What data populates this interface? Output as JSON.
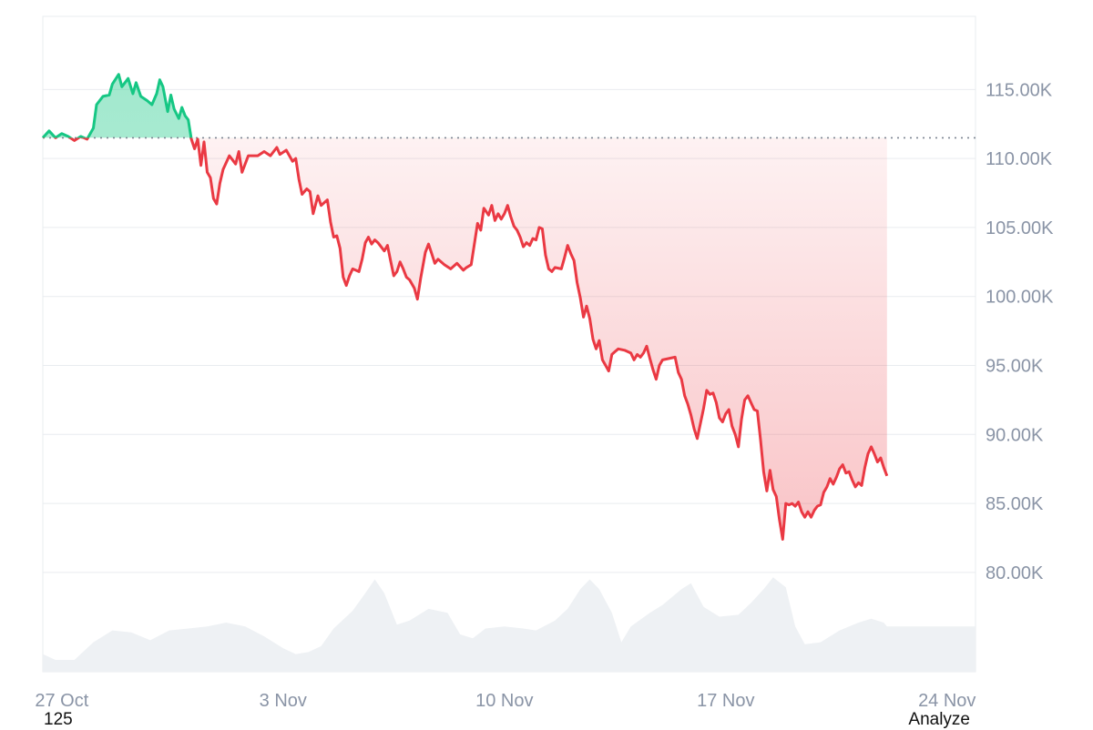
{
  "chart_data": {
    "type": "area",
    "y_axis": {
      "ticks": [
        80000,
        85000,
        90000,
        95000,
        100000,
        105000,
        110000,
        115000
      ],
      "tick_labels": [
        "80.00K",
        "85.00K",
        "90.00K",
        "95.00K",
        "100.00K",
        "105.00K",
        "110.00K",
        "115.00K"
      ],
      "position": "right",
      "range": [
        72800,
        120300
      ]
    },
    "x_axis": {
      "tick_labels": [
        "27 Oct",
        "3 Nov",
        "10 Nov",
        "17 Nov",
        "24 Nov"
      ],
      "tick_days": [
        1,
        8,
        15,
        22,
        29
      ],
      "range_days": [
        0.4,
        29.9
      ]
    },
    "baseline": 111500,
    "colors": {
      "above": "#16c784",
      "below": "#ea3943",
      "volume": "#eef1f4",
      "grid": "#e9ecef",
      "axis_text": "#8a94a6"
    },
    "grid": true,
    "price_series": [
      [
        0.4,
        111500
      ],
      [
        0.6,
        112000
      ],
      [
        0.8,
        111500
      ],
      [
        1.0,
        111800
      ],
      [
        1.2,
        111600
      ],
      [
        1.4,
        111300
      ],
      [
        1.6,
        111600
      ],
      [
        1.8,
        111400
      ],
      [
        2.0,
        112200
      ],
      [
        2.1,
        113900
      ],
      [
        2.3,
        114500
      ],
      [
        2.5,
        114600
      ],
      [
        2.6,
        115400
      ],
      [
        2.8,
        116100
      ],
      [
        2.9,
        115200
      ],
      [
        3.1,
        115800
      ],
      [
        3.25,
        114700
      ],
      [
        3.35,
        115500
      ],
      [
        3.5,
        114500
      ],
      [
        3.7,
        114200
      ],
      [
        3.85,
        113900
      ],
      [
        4.0,
        114700
      ],
      [
        4.1,
        115700
      ],
      [
        4.2,
        115200
      ],
      [
        4.35,
        113400
      ],
      [
        4.45,
        114600
      ],
      [
        4.55,
        113600
      ],
      [
        4.7,
        112900
      ],
      [
        4.8,
        113700
      ],
      [
        4.9,
        113100
      ],
      [
        5.0,
        112800
      ],
      [
        5.1,
        111400
      ],
      [
        5.2,
        110700
      ],
      [
        5.3,
        111400
      ],
      [
        5.4,
        109500
      ],
      [
        5.5,
        111200
      ],
      [
        5.6,
        109000
      ],
      [
        5.7,
        108600
      ],
      [
        5.8,
        107100
      ],
      [
        5.9,
        106700
      ],
      [
        6.0,
        108200
      ],
      [
        6.1,
        109200
      ],
      [
        6.3,
        110200
      ],
      [
        6.5,
        109600
      ],
      [
        6.6,
        110500
      ],
      [
        6.7,
        109000
      ],
      [
        6.9,
        110200
      ],
      [
        7.2,
        110200
      ],
      [
        7.4,
        110500
      ],
      [
        7.6,
        110200
      ],
      [
        7.8,
        110800
      ],
      [
        7.9,
        110300
      ],
      [
        8.1,
        110600
      ],
      [
        8.3,
        109800
      ],
      [
        8.4,
        110000
      ],
      [
        8.5,
        108500
      ],
      [
        8.6,
        107400
      ],
      [
        8.75,
        107800
      ],
      [
        8.85,
        107600
      ],
      [
        8.95,
        106000
      ],
      [
        9.1,
        107300
      ],
      [
        9.2,
        106600
      ],
      [
        9.4,
        107000
      ],
      [
        9.5,
        105400
      ],
      [
        9.6,
        104300
      ],
      [
        9.7,
        104400
      ],
      [
        9.8,
        103500
      ],
      [
        9.9,
        101400
      ],
      [
        10.0,
        100800
      ],
      [
        10.1,
        101500
      ],
      [
        10.2,
        102000
      ],
      [
        10.4,
        101800
      ],
      [
        10.5,
        102700
      ],
      [
        10.6,
        103900
      ],
      [
        10.7,
        104300
      ],
      [
        10.8,
        103800
      ],
      [
        10.9,
        104100
      ],
      [
        11.0,
        103900
      ],
      [
        11.2,
        103300
      ],
      [
        11.3,
        103700
      ],
      [
        11.4,
        102600
      ],
      [
        11.5,
        101500
      ],
      [
        11.6,
        101800
      ],
      [
        11.7,
        102500
      ],
      [
        11.8,
        102000
      ],
      [
        11.9,
        101400
      ],
      [
        12.0,
        101200
      ],
      [
        12.15,
        100600
      ],
      [
        12.25,
        99800
      ],
      [
        12.35,
        101300
      ],
      [
        12.5,
        103200
      ],
      [
        12.6,
        103800
      ],
      [
        12.7,
        103100
      ],
      [
        12.8,
        102400
      ],
      [
        12.9,
        102700
      ],
      [
        13.1,
        102300
      ],
      [
        13.3,
        102000
      ],
      [
        13.5,
        102400
      ],
      [
        13.7,
        101900
      ],
      [
        13.8,
        102100
      ],
      [
        13.95,
        102300
      ],
      [
        14.05,
        103800
      ],
      [
        14.15,
        105300
      ],
      [
        14.25,
        104800
      ],
      [
        14.35,
        106400
      ],
      [
        14.5,
        105900
      ],
      [
        14.6,
        106600
      ],
      [
        14.7,
        105500
      ],
      [
        14.8,
        106000
      ],
      [
        14.9,
        105600
      ],
      [
        15.0,
        106000
      ],
      [
        15.1,
        106600
      ],
      [
        15.2,
        105800
      ],
      [
        15.3,
        105100
      ],
      [
        15.4,
        104800
      ],
      [
        15.5,
        104300
      ],
      [
        15.6,
        103600
      ],
      [
        15.7,
        103900
      ],
      [
        15.8,
        103700
      ],
      [
        15.9,
        104200
      ],
      [
        16.0,
        104100
      ],
      [
        16.1,
        105000
      ],
      [
        16.2,
        104900
      ],
      [
        16.3,
        103000
      ],
      [
        16.4,
        102000
      ],
      [
        16.5,
        101800
      ],
      [
        16.6,
        102100
      ],
      [
        16.8,
        102000
      ],
      [
        16.9,
        102800
      ],
      [
        17.0,
        103700
      ],
      [
        17.1,
        103100
      ],
      [
        17.2,
        102600
      ],
      [
        17.3,
        101000
      ],
      [
        17.4,
        99900
      ],
      [
        17.5,
        98500
      ],
      [
        17.6,
        99300
      ],
      [
        17.7,
        98400
      ],
      [
        17.8,
        96900
      ],
      [
        17.9,
        96200
      ],
      [
        18.0,
        96800
      ],
      [
        18.1,
        95400
      ],
      [
        18.2,
        95000
      ],
      [
        18.3,
        94600
      ],
      [
        18.4,
        95800
      ],
      [
        18.5,
        96000
      ],
      [
        18.6,
        96200
      ],
      [
        18.8,
        96100
      ],
      [
        19.0,
        95900
      ],
      [
        19.1,
        95400
      ],
      [
        19.2,
        95800
      ],
      [
        19.3,
        95600
      ],
      [
        19.4,
        95900
      ],
      [
        19.5,
        96400
      ],
      [
        19.6,
        95500
      ],
      [
        19.7,
        94700
      ],
      [
        19.8,
        94000
      ],
      [
        19.9,
        95000
      ],
      [
        20.0,
        95400
      ],
      [
        20.2,
        95500
      ],
      [
        20.4,
        95600
      ],
      [
        20.5,
        94500
      ],
      [
        20.6,
        94000
      ],
      [
        20.7,
        92800
      ],
      [
        20.8,
        92200
      ],
      [
        20.9,
        91400
      ],
      [
        21.0,
        90400
      ],
      [
        21.1,
        89700
      ],
      [
        21.2,
        90800
      ],
      [
        21.3,
        91900
      ],
      [
        21.4,
        93200
      ],
      [
        21.5,
        92900
      ],
      [
        21.6,
        93000
      ],
      [
        21.7,
        92300
      ],
      [
        21.8,
        91200
      ],
      [
        21.9,
        90900
      ],
      [
        22.0,
        91500
      ],
      [
        22.1,
        91800
      ],
      [
        22.2,
        90600
      ],
      [
        22.3,
        90000
      ],
      [
        22.4,
        89100
      ],
      [
        22.5,
        91100
      ],
      [
        22.6,
        92500
      ],
      [
        22.7,
        92800
      ],
      [
        22.8,
        92300
      ],
      [
        22.9,
        91800
      ],
      [
        23.0,
        91700
      ],
      [
        23.1,
        89600
      ],
      [
        23.2,
        87300
      ],
      [
        23.3,
        85900
      ],
      [
        23.4,
        87400
      ],
      [
        23.5,
        86000
      ],
      [
        23.6,
        85500
      ],
      [
        23.7,
        83800
      ],
      [
        23.8,
        82400
      ],
      [
        23.9,
        85000
      ],
      [
        24.0,
        84900
      ],
      [
        24.1,
        85000
      ],
      [
        24.2,
        84800
      ],
      [
        24.3,
        85100
      ],
      [
        24.4,
        84400
      ],
      [
        24.5,
        84000
      ],
      [
        24.6,
        84400
      ],
      [
        24.7,
        84000
      ],
      [
        24.8,
        84500
      ],
      [
        24.9,
        84800
      ],
      [
        25.0,
        84900
      ],
      [
        25.1,
        85800
      ],
      [
        25.2,
        86200
      ],
      [
        25.3,
        86800
      ],
      [
        25.4,
        86400
      ],
      [
        25.5,
        86900
      ],
      [
        25.6,
        87500
      ],
      [
        25.7,
        87800
      ],
      [
        25.8,
        87200
      ],
      [
        25.9,
        87300
      ],
      [
        26.0,
        86700
      ],
      [
        26.1,
        86200
      ],
      [
        26.2,
        86500
      ],
      [
        26.3,
        86300
      ],
      [
        26.4,
        87600
      ],
      [
        26.5,
        88600
      ],
      [
        26.6,
        89100
      ],
      [
        26.7,
        88600
      ],
      [
        26.8,
        88000
      ],
      [
        26.9,
        88300
      ],
      [
        27.0,
        87600
      ],
      [
        27.1,
        87000
      ]
    ],
    "volume_series": [
      [
        0.4,
        0.18
      ],
      [
        0.8,
        0.12
      ],
      [
        1.4,
        0.12
      ],
      [
        2.0,
        0.3
      ],
      [
        2.6,
        0.42
      ],
      [
        3.2,
        0.4
      ],
      [
        3.8,
        0.32
      ],
      [
        4.4,
        0.42
      ],
      [
        5.0,
        0.44
      ],
      [
        5.6,
        0.46
      ],
      [
        6.2,
        0.5
      ],
      [
        6.8,
        0.46
      ],
      [
        7.4,
        0.36
      ],
      [
        8.0,
        0.24
      ],
      [
        8.4,
        0.18
      ],
      [
        8.8,
        0.2
      ],
      [
        9.2,
        0.26
      ],
      [
        9.6,
        0.44
      ],
      [
        10.2,
        0.62
      ],
      [
        10.6,
        0.8
      ],
      [
        10.9,
        0.94
      ],
      [
        11.2,
        0.8
      ],
      [
        11.6,
        0.48
      ],
      [
        12.0,
        0.52
      ],
      [
        12.6,
        0.64
      ],
      [
        13.2,
        0.6
      ],
      [
        13.6,
        0.38
      ],
      [
        14.0,
        0.34
      ],
      [
        14.4,
        0.44
      ],
      [
        15.0,
        0.46
      ],
      [
        15.6,
        0.44
      ],
      [
        16.0,
        0.42
      ],
      [
        16.6,
        0.52
      ],
      [
        17.0,
        0.64
      ],
      [
        17.4,
        0.84
      ],
      [
        17.7,
        0.94
      ],
      [
        18.0,
        0.84
      ],
      [
        18.4,
        0.6
      ],
      [
        18.7,
        0.3
      ],
      [
        19.0,
        0.46
      ],
      [
        19.6,
        0.6
      ],
      [
        20.0,
        0.68
      ],
      [
        20.6,
        0.84
      ],
      [
        20.9,
        0.9
      ],
      [
        21.3,
        0.66
      ],
      [
        21.8,
        0.56
      ],
      [
        22.4,
        0.58
      ],
      [
        22.8,
        0.7
      ],
      [
        23.2,
        0.84
      ],
      [
        23.5,
        0.96
      ],
      [
        23.9,
        0.86
      ],
      [
        24.2,
        0.46
      ],
      [
        24.5,
        0.28
      ],
      [
        25.0,
        0.3
      ],
      [
        25.6,
        0.42
      ],
      [
        26.2,
        0.5
      ],
      [
        26.6,
        0.54
      ],
      [
        27.0,
        0.5
      ],
      [
        27.1,
        0.46
      ]
    ]
  },
  "footer": {
    "left_text": "125",
    "right_text": "Analyze"
  }
}
